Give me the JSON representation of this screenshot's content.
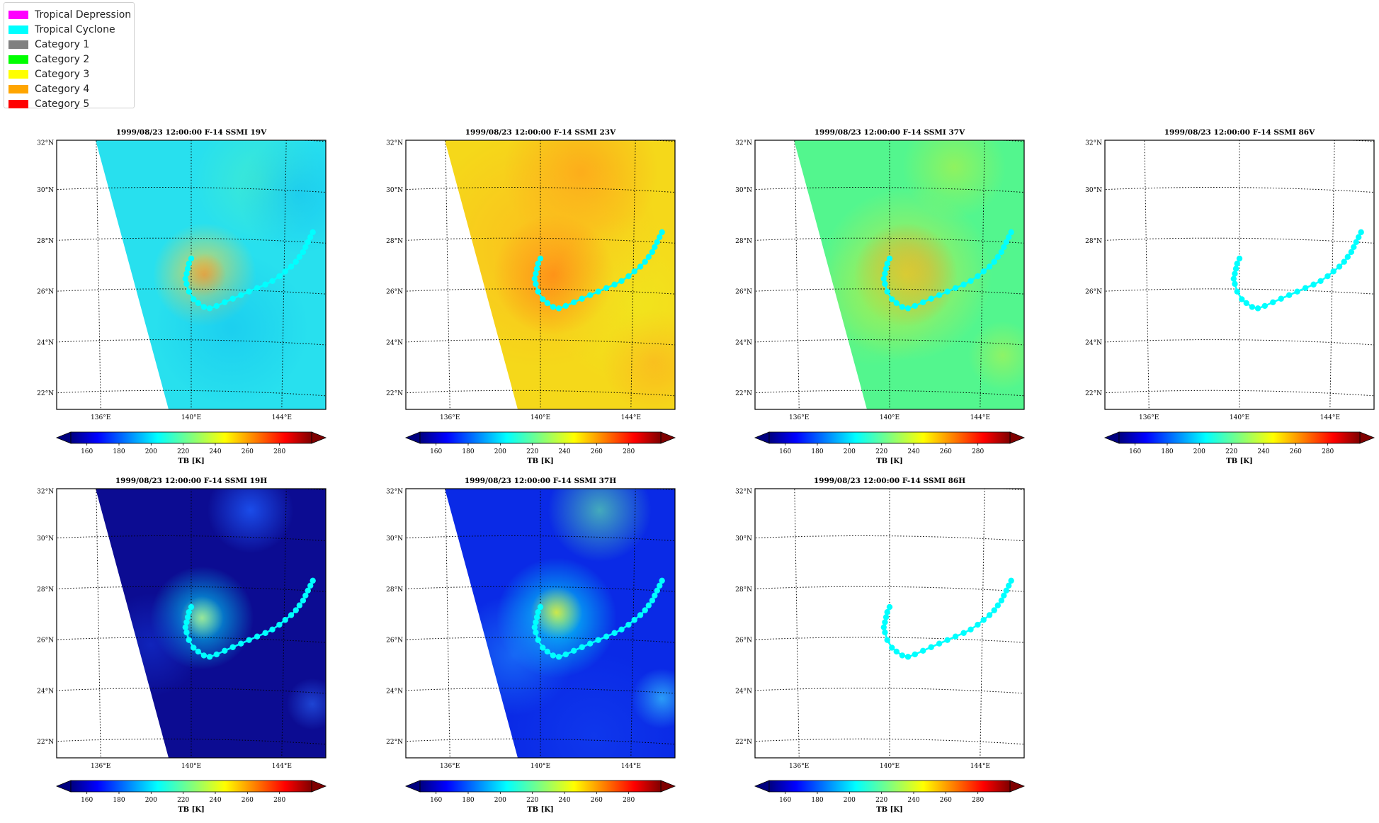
{
  "legend": {
    "items": [
      {
        "label": "Tropical Depression",
        "color": "#ff00ff"
      },
      {
        "label": "Tropical Cyclone",
        "color": "#00ffff"
      },
      {
        "label": "Category 1",
        "color": "#808080"
      },
      {
        "label": "Category 2",
        "color": "#00ff00"
      },
      {
        "label": "Category 3",
        "color": "#ffff00"
      },
      {
        "label": "Category 4",
        "color": "#ffa500"
      },
      {
        "label": "Category 5",
        "color": "#ff0000"
      }
    ]
  },
  "chart_data": [
    {
      "type": "heatmap",
      "title": "1999/08/23 12:00:00  F-14 SSMI 19V",
      "background": "cyan-blue",
      "swath": true,
      "lat_ticks": [
        "32°N",
        "30°N",
        "28°N",
        "26°N",
        "24°N",
        "22°N"
      ],
      "lon_ticks": [
        "136°E",
        "140°E",
        "144°E"
      ],
      "colorbar": {
        "ticks": [
          "160",
          "180",
          "200",
          "220",
          "240",
          "260",
          "280"
        ],
        "label": "TB [K]",
        "range": [
          150,
          300
        ]
      }
    },
    {
      "type": "heatmap",
      "title": "1999/08/23 12:00:00  F-14 SSMI 23V",
      "background": "orange-yellow",
      "swath": true,
      "lat_ticks": [
        "32°N",
        "30°N",
        "28°N",
        "26°N",
        "24°N",
        "22°N"
      ],
      "lon_ticks": [
        "136°E",
        "140°E",
        "144°E"
      ],
      "colorbar": {
        "ticks": [
          "160",
          "180",
          "200",
          "220",
          "240",
          "260",
          "280"
        ],
        "label": "TB [K]",
        "range": [
          150,
          300
        ]
      }
    },
    {
      "type": "heatmap",
      "title": "1999/08/23 12:00:00  F-14 SSMI 37V",
      "background": "green",
      "swath": true,
      "lat_ticks": [
        "32°N",
        "30°N",
        "28°N",
        "26°N",
        "24°N",
        "22°N"
      ],
      "lon_ticks": [
        "136°E",
        "140°E",
        "144°E"
      ],
      "colorbar": {
        "ticks": [
          "160",
          "180",
          "200",
          "220",
          "240",
          "260",
          "280"
        ],
        "label": "TB [K]",
        "range": [
          150,
          300
        ]
      }
    },
    {
      "type": "heatmap",
      "title": "1999/08/23 12:00:00  F-14 SSMI 86V",
      "background": "none",
      "swath": false,
      "lat_ticks": [
        "32°N",
        "30°N",
        "28°N",
        "26°N",
        "24°N",
        "22°N"
      ],
      "lon_ticks": [
        "136°E",
        "140°E",
        "144°E"
      ],
      "colorbar": {
        "ticks": [
          "160",
          "180",
          "200",
          "220",
          "240",
          "260",
          "280"
        ],
        "label": "TB [K]",
        "range": [
          150,
          300
        ]
      }
    },
    {
      "type": "heatmap",
      "title": "1999/08/23 12:00:00  F-14 SSMI 19H",
      "background": "dark-blue",
      "swath": true,
      "lat_ticks": [
        "32°N",
        "30°N",
        "28°N",
        "26°N",
        "24°N",
        "22°N"
      ],
      "lon_ticks": [
        "136°E",
        "140°E",
        "144°E"
      ],
      "colorbar": {
        "ticks": [
          "160",
          "180",
          "200",
          "220",
          "240",
          "260",
          "280"
        ],
        "label": "TB [K]",
        "range": [
          150,
          300
        ]
      }
    },
    {
      "type": "heatmap",
      "title": "1999/08/23 12:00:00  F-14 SSMI 37H",
      "background": "blue",
      "swath": true,
      "lat_ticks": [
        "32°N",
        "30°N",
        "28°N",
        "26°N",
        "24°N",
        "22°N"
      ],
      "lon_ticks": [
        "136°E",
        "140°E",
        "144°E"
      ],
      "colorbar": {
        "ticks": [
          "160",
          "180",
          "200",
          "220",
          "240",
          "260",
          "280"
        ],
        "label": "TB [K]",
        "range": [
          150,
          300
        ]
      }
    },
    {
      "type": "heatmap",
      "title": "1999/08/23 12:00:00  F-14 SSMI 86H",
      "background": "none",
      "swath": false,
      "lat_ticks": [
        "32°N",
        "30°N",
        "28°N",
        "26°N",
        "24°N",
        "22°N"
      ],
      "lon_ticks": [
        "136°E",
        "140°E",
        "144°E"
      ],
      "colorbar": {
        "ticks": [
          "160",
          "180",
          "200",
          "220",
          "240",
          "260",
          "280"
        ],
        "label": "TB [K]",
        "range": [
          150,
          300
        ]
      }
    }
  ],
  "track": {
    "category": "Tropical Cyclone",
    "color": "#00ffff",
    "points": [
      {
        "lon": 140.0,
        "lat": 27.2
      },
      {
        "lon": 139.9,
        "lat": 27.0
      },
      {
        "lon": 139.85,
        "lat": 26.8
      },
      {
        "lon": 139.8,
        "lat": 26.6
      },
      {
        "lon": 139.75,
        "lat": 26.4
      },
      {
        "lon": 139.8,
        "lat": 26.2
      },
      {
        "lon": 139.9,
        "lat": 25.9
      },
      {
        "lon": 140.1,
        "lat": 25.6
      },
      {
        "lon": 140.3,
        "lat": 25.45
      },
      {
        "lon": 140.55,
        "lat": 25.3
      },
      {
        "lon": 140.8,
        "lat": 25.25
      },
      {
        "lon": 141.1,
        "lat": 25.35
      },
      {
        "lon": 141.45,
        "lat": 25.5
      },
      {
        "lon": 141.8,
        "lat": 25.65
      },
      {
        "lon": 142.15,
        "lat": 25.8
      },
      {
        "lon": 142.5,
        "lat": 25.95
      },
      {
        "lon": 142.85,
        "lat": 26.1
      },
      {
        "lon": 143.2,
        "lat": 26.25
      },
      {
        "lon": 143.5,
        "lat": 26.4
      },
      {
        "lon": 143.8,
        "lat": 26.6
      },
      {
        "lon": 144.05,
        "lat": 26.8
      },
      {
        "lon": 144.3,
        "lat": 27.0
      },
      {
        "lon": 144.5,
        "lat": 27.2
      },
      {
        "lon": 144.65,
        "lat": 27.4
      },
      {
        "lon": 144.8,
        "lat": 27.6
      },
      {
        "lon": 144.9,
        "lat": 27.8
      },
      {
        "lon": 145.0,
        "lat": 28.0
      },
      {
        "lon": 145.1,
        "lat": 28.2
      },
      {
        "lon": 145.2,
        "lat": 28.4
      }
    ]
  }
}
